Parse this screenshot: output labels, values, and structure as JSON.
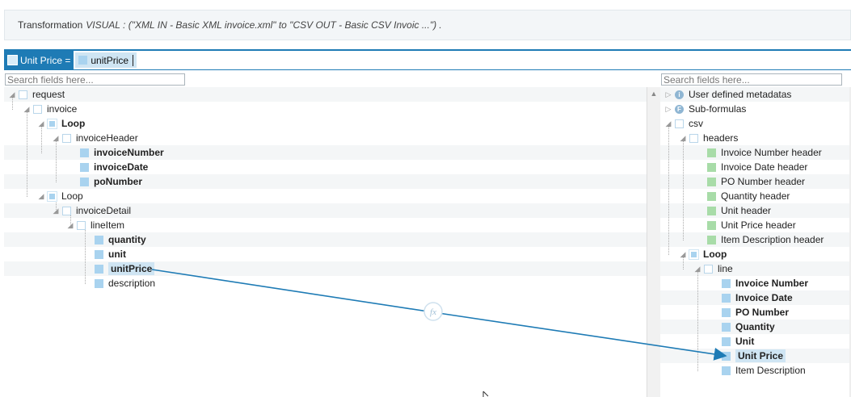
{
  "banner": {
    "label": "Transformation",
    "description": "VISUAL : (\"XML IN - Basic XML invoice.xml\" to \"CSV OUT - Basic CSV Invoic ...\") ."
  },
  "formula": {
    "target": "Unit Price =",
    "expression": "unitPrice"
  },
  "left": {
    "search_placeholder": "Search fields here...",
    "nodes": {
      "request": "request",
      "invoice": "invoice",
      "loop1": "Loop",
      "invoiceHeader": "invoiceHeader",
      "invoiceNumber": "invoiceNumber",
      "invoiceDate": "invoiceDate",
      "poNumber": "poNumber",
      "loop2": "Loop",
      "invoiceDetail": "invoiceDetail",
      "lineItem": "lineItem",
      "quantity": "quantity",
      "unit": "unit",
      "unitPrice": "unitPrice",
      "description": "description"
    }
  },
  "right": {
    "search_placeholder": "Search fields here...",
    "nodes": {
      "userMeta": "User defined metadatas",
      "subFormulas": "Sub-formulas",
      "csv": "csv",
      "headers": "headers",
      "h1": "Invoice Number header",
      "h2": "Invoice Date header",
      "h3": "PO Number header",
      "h4": "Quantity header",
      "h5": "Unit header",
      "h6": "Unit Price header",
      "h7": "Item Description header",
      "loop": "Loop",
      "line": "line",
      "f1": "Invoice Number",
      "f2": "Invoice Date",
      "f3": "PO Number",
      "f4": "Quantity",
      "f5": "Unit",
      "f6": "Unit Price",
      "f7": "Item Description"
    }
  },
  "mapping": {
    "function_icon": "fx",
    "color": "#1e7bb5"
  }
}
